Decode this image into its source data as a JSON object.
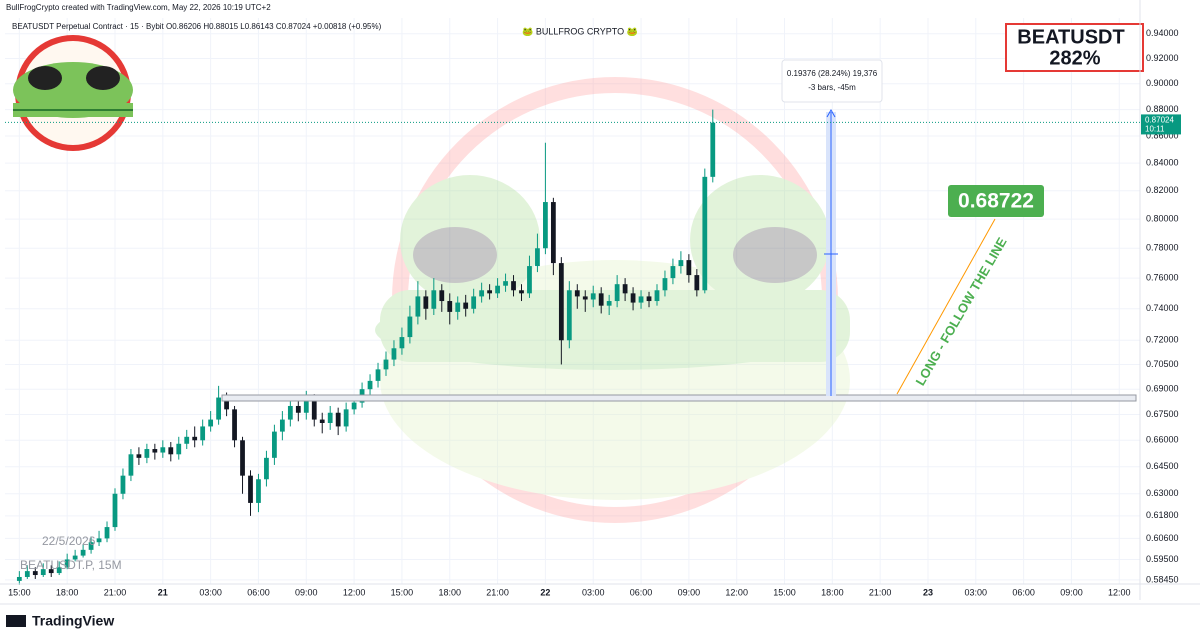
{
  "header": {
    "credit": "BullFrogCrypto created with TradingView.com, May 22, 2026 10:19 UTC+2",
    "legend": "BEATUSDT Perpetual Contract · 15 · Bybit O0.86206 H0.88015 L0.86143 C0.87024 +0.00818 (+0.95%)",
    "watermark": "🐸 BULLFROG CRYPTO 🐸"
  },
  "badge": {
    "symbol": "BEATUSDT",
    "gain": "282%"
  },
  "measure": {
    "line1": "0.19376 (28.24%) 19,376",
    "line2": "-3 bars, -45m"
  },
  "last_price": {
    "value": 0.87024,
    "label": "0.87024",
    "countdown": "10:11"
  },
  "level": {
    "value": 0.68722,
    "label": "0.68722"
  },
  "trend_note": "LONG - FOLLOW THE LINE",
  "symbol_watermark": {
    "date": "22/5/2026",
    "symbol": "BEATUSDT.P, 15M"
  },
  "footer": "TradingView",
  "chart_data": {
    "type": "candlestick",
    "log_scale": true,
    "grid": true,
    "up_color": "#089981",
    "down_color": "#131722",
    "xlim": [
      -0.9,
      70.3
    ],
    "xticks": [
      {
        "value": 0,
        "label": "15:00"
      },
      {
        "value": 3,
        "label": "18:00"
      },
      {
        "value": 6,
        "label": "21:00"
      },
      {
        "value": 9,
        "label": "21"
      },
      {
        "value": 12,
        "label": "03:00"
      },
      {
        "value": 15,
        "label": "06:00"
      },
      {
        "value": 18,
        "label": "09:00"
      },
      {
        "value": 21,
        "label": "12:00"
      },
      {
        "value": 24,
        "label": "15:00"
      },
      {
        "value": 27,
        "label": "18:00"
      },
      {
        "value": 30,
        "label": "21:00"
      },
      {
        "value": 33,
        "label": "22"
      },
      {
        "value": 36,
        "label": "03:00"
      },
      {
        "value": 39,
        "label": "06:00"
      },
      {
        "value": 42,
        "label": "09:00"
      },
      {
        "value": 45,
        "label": "12:00"
      },
      {
        "value": 48,
        "label": "15:00"
      },
      {
        "value": 51,
        "label": "18:00"
      },
      {
        "value": 54,
        "label": "21:00"
      },
      {
        "value": 57,
        "label": "23"
      },
      {
        "value": 60,
        "label": "03:00"
      },
      {
        "value": 63,
        "label": "06:00"
      },
      {
        "value": 66,
        "label": "09:00"
      },
      {
        "value": 69,
        "label": "12:00"
      }
    ],
    "ylim": [
      0.5794,
      0.953
    ],
    "yticks": [
      {
        "value": 0.5845,
        "label": "0.58450"
      },
      {
        "value": 0.595,
        "label": "0.59500"
      },
      {
        "value": 0.606,
        "label": "0.60600"
      },
      {
        "value": 0.618,
        "label": "0.61800"
      },
      {
        "value": 0.63,
        "label": "0.63000"
      },
      {
        "value": 0.645,
        "label": "0.64500"
      },
      {
        "value": 0.66,
        "label": "0.66000"
      },
      {
        "value": 0.675,
        "label": "0.67500"
      },
      {
        "value": 0.69,
        "label": "0.69000"
      },
      {
        "value": 0.705,
        "label": "0.70500"
      },
      {
        "value": 0.72,
        "label": "0.72000"
      },
      {
        "value": 0.74,
        "label": "0.74000"
      },
      {
        "value": 0.76,
        "label": "0.76000"
      },
      {
        "value": 0.78,
        "label": "0.78000"
      },
      {
        "value": 0.8,
        "label": "0.80000"
      },
      {
        "value": 0.82,
        "label": "0.82000"
      },
      {
        "value": 0.84,
        "label": "0.84000"
      },
      {
        "value": 0.86,
        "label": "0.86000"
      },
      {
        "value": 0.88,
        "label": "0.88000"
      },
      {
        "value": 0.9,
        "label": "0.90000"
      },
      {
        "value": 0.92,
        "label": "0.92000"
      },
      {
        "value": 0.94,
        "label": "0.94000"
      }
    ],
    "x": [
      0,
      0.5,
      1,
      1.5,
      2,
      2.5,
      3,
      3.5,
      4,
      4.5,
      5,
      5.5,
      6,
      6.5,
      7,
      7.5,
      8,
      8.5,
      9,
      9.5,
      10,
      10.5,
      11,
      11.5,
      12,
      12.5,
      13,
      13.5,
      14,
      14.5,
      15,
      15.5,
      16,
      16.5,
      17,
      17.5,
      18,
      18.5,
      19,
      19.5,
      20,
      20.5,
      21,
      21.5,
      22,
      22.5,
      23,
      23.5,
      24,
      24.5,
      25,
      25.5,
      26,
      26.5,
      27,
      27.5,
      28,
      28.5,
      29,
      29.5,
      30,
      30.5,
      31,
      31.5,
      32,
      32.5,
      33,
      33.5,
      34,
      34.5,
      35,
      35.5,
      36,
      36.5,
      37,
      37.5,
      38,
      38.5,
      39,
      39.5,
      40,
      40.5,
      41,
      41.5,
      42,
      42.5,
      43,
      43.5
    ],
    "open": [
      0.584,
      0.586,
      0.589,
      0.587,
      0.59,
      0.588,
      0.591,
      0.595,
      0.597,
      0.6,
      0.604,
      0.606,
      0.612,
      0.63,
      0.64,
      0.652,
      0.65,
      0.655,
      0.653,
      0.656,
      0.652,
      0.658,
      0.662,
      0.66,
      0.668,
      0.672,
      0.685,
      0.678,
      0.66,
      0.64,
      0.625,
      0.638,
      0.65,
      0.665,
      0.672,
      0.68,
      0.676,
      0.684,
      0.672,
      0.67,
      0.676,
      0.668,
      0.678,
      0.682,
      0.69,
      0.695,
      0.702,
      0.708,
      0.715,
      0.722,
      0.735,
      0.748,
      0.74,
      0.752,
      0.745,
      0.738,
      0.744,
      0.74,
      0.748,
      0.752,
      0.75,
      0.755,
      0.758,
      0.752,
      0.75,
      0.768,
      0.78,
      0.812,
      0.77,
      0.72,
      0.752,
      0.748,
      0.746,
      0.75,
      0.742,
      0.745,
      0.756,
      0.75,
      0.744,
      0.748,
      0.745,
      0.752,
      0.76,
      0.768,
      0.772,
      0.762,
      0.752,
      0.83
    ],
    "high": [
      0.589,
      0.592,
      0.591,
      0.593,
      0.592,
      0.594,
      0.598,
      0.6,
      0.603,
      0.607,
      0.61,
      0.615,
      0.633,
      0.644,
      0.655,
      0.656,
      0.658,
      0.658,
      0.66,
      0.659,
      0.662,
      0.666,
      0.668,
      0.672,
      0.677,
      0.692,
      0.688,
      0.68,
      0.662,
      0.643,
      0.641,
      0.654,
      0.669,
      0.677,
      0.686,
      0.684,
      0.689,
      0.687,
      0.676,
      0.68,
      0.679,
      0.682,
      0.686,
      0.694,
      0.699,
      0.706,
      0.713,
      0.72,
      0.728,
      0.742,
      0.758,
      0.752,
      0.76,
      0.756,
      0.75,
      0.748,
      0.749,
      0.753,
      0.757,
      0.756,
      0.76,
      0.763,
      0.762,
      0.756,
      0.775,
      0.79,
      0.855,
      0.815,
      0.774,
      0.758,
      0.756,
      0.752,
      0.755,
      0.754,
      0.749,
      0.762,
      0.76,
      0.754,
      0.752,
      0.751,
      0.756,
      0.765,
      0.773,
      0.778,
      0.776,
      0.766,
      0.836,
      0.88
    ],
    "low": [
      0.582,
      0.585,
      0.585,
      0.586,
      0.586,
      0.587,
      0.59,
      0.594,
      0.596,
      0.598,
      0.602,
      0.604,
      0.61,
      0.627,
      0.637,
      0.646,
      0.647,
      0.649,
      0.65,
      0.648,
      0.649,
      0.655,
      0.656,
      0.657,
      0.665,
      0.669,
      0.674,
      0.656,
      0.63,
      0.618,
      0.62,
      0.634,
      0.646,
      0.66,
      0.668,
      0.671,
      0.672,
      0.668,
      0.664,
      0.666,
      0.663,
      0.665,
      0.675,
      0.679,
      0.686,
      0.691,
      0.698,
      0.704,
      0.711,
      0.718,
      0.73,
      0.733,
      0.736,
      0.738,
      0.73,
      0.733,
      0.735,
      0.737,
      0.744,
      0.746,
      0.747,
      0.751,
      0.748,
      0.745,
      0.747,
      0.764,
      0.776,
      0.762,
      0.705,
      0.715,
      0.74,
      0.738,
      0.741,
      0.737,
      0.736,
      0.741,
      0.745,
      0.739,
      0.74,
      0.741,
      0.742,
      0.748,
      0.756,
      0.763,
      0.757,
      0.748,
      0.75,
      0.826
    ],
    "close": [
      0.586,
      0.589,
      0.587,
      0.59,
      0.588,
      0.591,
      0.595,
      0.597,
      0.6,
      0.604,
      0.606,
      0.612,
      0.63,
      0.64,
      0.652,
      0.65,
      0.655,
      0.653,
      0.656,
      0.652,
      0.658,
      0.662,
      0.66,
      0.668,
      0.672,
      0.685,
      0.678,
      0.66,
      0.64,
      0.625,
      0.638,
      0.65,
      0.665,
      0.672,
      0.68,
      0.676,
      0.684,
      0.672,
      0.67,
      0.676,
      0.668,
      0.678,
      0.682,
      0.69,
      0.695,
      0.702,
      0.708,
      0.715,
      0.722,
      0.735,
      0.748,
      0.74,
      0.752,
      0.745,
      0.738,
      0.744,
      0.74,
      0.748,
      0.752,
      0.75,
      0.755,
      0.758,
      0.752,
      0.75,
      0.768,
      0.78,
      0.812,
      0.77,
      0.72,
      0.752,
      0.748,
      0.746,
      0.75,
      0.742,
      0.745,
      0.756,
      0.75,
      0.744,
      0.748,
      0.745,
      0.752,
      0.76,
      0.768,
      0.772,
      0.762,
      0.752,
      0.83,
      0.87
    ]
  }
}
